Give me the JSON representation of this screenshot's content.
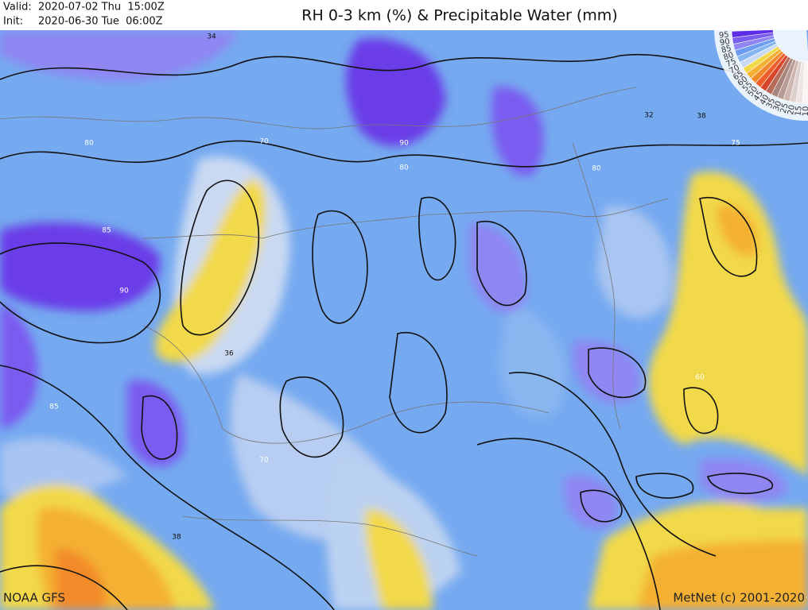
{
  "header": {
    "valid_label": "Valid:",
    "valid": "2020-07-02 Thu  15:00Z",
    "init_label": "Init:",
    "init": "2020-06-30 Tue  06:00Z",
    "title": "RH 0-3 km (%) & Precipitable Water (mm)"
  },
  "legend": {
    "labels": [
      95,
      90,
      85,
      80,
      75,
      70,
      65,
      60,
      55,
      50,
      45,
      40,
      35,
      30,
      25,
      20,
      15,
      10
    ],
    "colors": [
      "#5b2de8",
      "#7a5cf0",
      "#8f86f2",
      "#6d9cf0",
      "#86b6f2",
      "#c9d9f2",
      "#f2d94a",
      "#f4b033",
      "#f28a2c",
      "#ee5e2a",
      "#d9452a",
      "#b86a5a",
      "#a7857c",
      "#b89c94",
      "#cdb7b0",
      "#ddd0cc",
      "#ece5e2",
      "#f7f4f3"
    ]
  },
  "contour_labels": [
    34,
    80,
    70,
    90,
    80,
    80,
    32,
    38,
    75,
    85,
    90,
    36,
    85,
    70,
    38,
    60
  ],
  "footer": {
    "source": "NOAA GFS",
    "copyright": "MetNet (c) 2001-2020"
  }
}
